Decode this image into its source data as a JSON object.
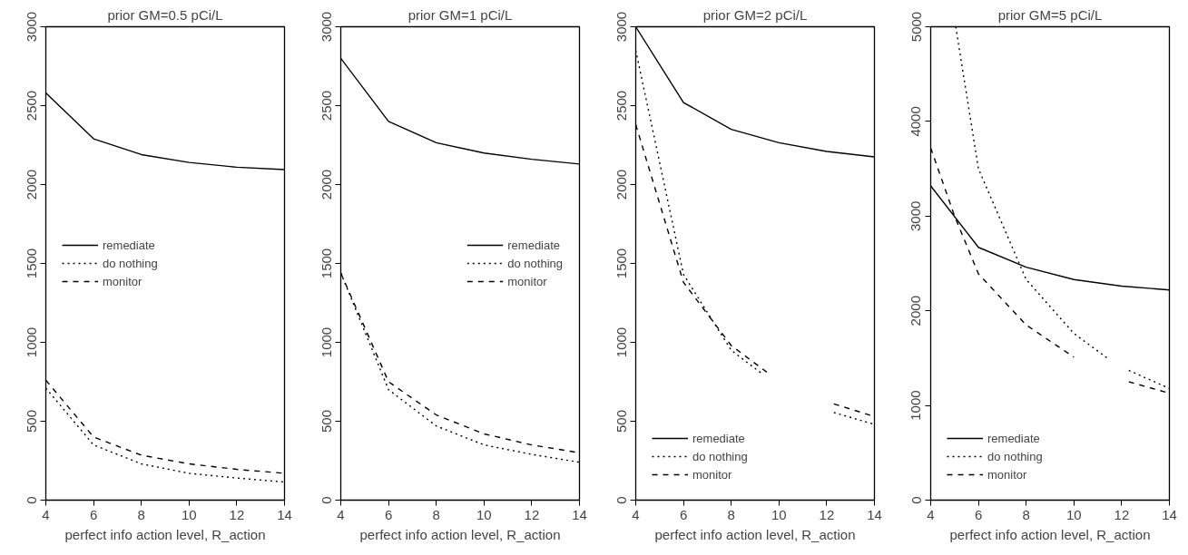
{
  "chart_data": [
    {
      "type": "line",
      "title": "prior GM=0.5 pCi/L",
      "xlabel": "perfect info action level, R_action",
      "xlim": [
        4,
        14
      ],
      "xticks": [
        4,
        6,
        8,
        10,
        12,
        14
      ],
      "ylim": [
        0,
        3000
      ],
      "yticks": [
        0,
        500,
        1000,
        1500,
        2000,
        2500,
        3000
      ],
      "grid": false,
      "legend": "left",
      "x": [
        4,
        6,
        8,
        10,
        12,
        14
      ],
      "series": [
        {
          "name": "remediate",
          "color": "#000000",
          "line_style": "solid",
          "values": [
            2580,
            2290,
            2190,
            2140,
            2110,
            2095
          ]
        },
        {
          "name": "do nothing",
          "color": "#000000",
          "line_style": "dotted",
          "values": [
            710,
            350,
            230,
            170,
            140,
            115
          ]
        },
        {
          "name": "monitor",
          "color": "#000000",
          "line_style": "dashed",
          "values": [
            760,
            400,
            285,
            230,
            195,
            170
          ]
        }
      ]
    },
    {
      "type": "line",
      "title": "prior GM=1 pCi/L",
      "xlabel": "perfect info action level, R_action",
      "xlim": [
        4,
        14
      ],
      "xticks": [
        4,
        6,
        8,
        10,
        12,
        14
      ],
      "ylim": [
        0,
        3000
      ],
      "yticks": [
        0,
        500,
        1000,
        1500,
        2000,
        2500,
        3000
      ],
      "grid": false,
      "legend": "right",
      "x": [
        4,
        6,
        8,
        10,
        12,
        14
      ],
      "series": [
        {
          "name": "remediate",
          "color": "#000000",
          "line_style": "solid",
          "values": [
            2800,
            2400,
            2265,
            2200,
            2160,
            2130
          ]
        },
        {
          "name": "do nothing",
          "color": "#000000",
          "line_style": "dotted",
          "values": [
            1440,
            700,
            470,
            350,
            290,
            240
          ]
        },
        {
          "name": "monitor",
          "color": "#000000",
          "line_style": "dashed",
          "values": [
            1440,
            750,
            540,
            420,
            350,
            300
          ]
        }
      ]
    },
    {
      "type": "line",
      "title": "prior GM=2 pCi/L",
      "xlabel": "perfect info action level, R_action",
      "xlim": [
        4,
        14
      ],
      "xticks": [
        4,
        6,
        8,
        10,
        12,
        14
      ],
      "ylim": [
        0,
        3000
      ],
      "yticks": [
        0,
        500,
        1000,
        1500,
        2000,
        2500,
        3000
      ],
      "grid": false,
      "legend": "bottom left",
      "x": [
        4,
        6,
        8,
        10,
        12,
        14
      ],
      "series": [
        {
          "name": "remediate",
          "color": "#000000",
          "line_style": "solid",
          "values": [
            3000,
            2520,
            2350,
            2265,
            2210,
            2175
          ]
        },
        {
          "name": "do nothing",
          "color": "#000000",
          "line_style": "dotted",
          "x": [
            4,
            6,
            8,
            9.3,
            10,
            12.3,
            14
          ],
          "values": [
            2850,
            1430,
            950,
            800,
            null,
            555,
            480
          ]
        },
        {
          "name": "monitor",
          "color": "#000000",
          "line_style": "dashed",
          "x": [
            4,
            6,
            8,
            9.5,
            10,
            12.3,
            14
          ],
          "values": [
            2380,
            1380,
            980,
            810,
            null,
            610,
            530
          ]
        }
      ]
    },
    {
      "type": "line",
      "title": "prior GM=5 pCi/L",
      "xlabel": "perfect info action level, R_action",
      "xlim": [
        4,
        14
      ],
      "xticks": [
        4,
        6,
        8,
        10,
        12,
        14
      ],
      "ylim": [
        0,
        5000
      ],
      "yticks": [
        0,
        1000,
        2000,
        3000,
        4000,
        5000
      ],
      "grid": false,
      "legend": "bottom left",
      "x": [
        4,
        6,
        8,
        10,
        12,
        14
      ],
      "series": [
        {
          "name": "remediate",
          "color": "#000000",
          "line_style": "solid",
          "values": [
            3320,
            2670,
            2460,
            2330,
            2260,
            2220
          ]
        },
        {
          "name": "do nothing",
          "color": "#000000",
          "line_style": "dotted",
          "x": [
            5.05,
            6,
            8,
            10,
            11.4,
            12,
            12.3,
            14
          ],
          "values": [
            5000,
            3500,
            2330,
            1760,
            1500,
            null,
            1370,
            1180
          ]
        },
        {
          "name": "monitor",
          "color": "#000000",
          "line_style": "dashed",
          "x": [
            4,
            5,
            6,
            8,
            10,
            11,
            12.3,
            14
          ],
          "values": [
            3720,
            3000,
            2390,
            1850,
            1510,
            null,
            1250,
            1130
          ]
        }
      ]
    }
  ]
}
